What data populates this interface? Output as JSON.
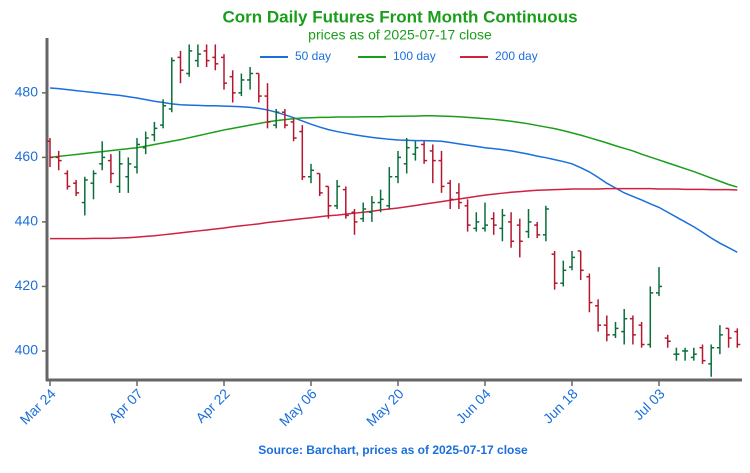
{
  "chart_data": {
    "type": "ohlc",
    "title": "Corn Daily Futures Front Month Continuous",
    "subtitle": "prices as of 2025-07-17 close",
    "source": "Source: Barchart, prices as of 2025-07-17 close",
    "title_color": "#1a9e1a",
    "text_color": "#1a6fdc",
    "up_color": "#0a6e3a",
    "down_color": "#b5172f",
    "grid": false,
    "legend_position": "top",
    "categories": [
      "Mar 24",
      null,
      null,
      null,
      null,
      null,
      null,
      null,
      null,
      null,
      "Apr 07",
      null,
      null,
      null,
      null,
      null,
      null,
      null,
      null,
      null,
      "Apr 22",
      null,
      null,
      null,
      null,
      null,
      null,
      null,
      null,
      null,
      "May 06",
      null,
      null,
      null,
      null,
      null,
      null,
      null,
      null,
      null,
      "May 20",
      null,
      null,
      null,
      null,
      null,
      null,
      null,
      null,
      null,
      "Jun 04",
      null,
      null,
      null,
      null,
      null,
      null,
      null,
      null,
      null,
      "Jun 18",
      null,
      null,
      null,
      null,
      null,
      null,
      null,
      null,
      null,
      "Jul 03",
      null,
      null,
      null,
      null,
      null,
      null,
      null,
      null,
      null
    ],
    "open": [
      465,
      460,
      455,
      452,
      446,
      452,
      458,
      459,
      451,
      454,
      457,
      463,
      467,
      470,
      475,
      491,
      486,
      490,
      493,
      491,
      491,
      485,
      480,
      484,
      486,
      479,
      470,
      474,
      471,
      468,
      454,
      455,
      451,
      445,
      450,
      443,
      441,
      443,
      446,
      445,
      454,
      458,
      461,
      464,
      462,
      459,
      452,
      449,
      445,
      438,
      438,
      441,
      438,
      440,
      439,
      437,
      439,
      436,
      430,
      421,
      426,
      431,
      423,
      414,
      408,
      405,
      406,
      410,
      408,
      402,
      418,
      404,
      399,
      400,
      398,
      401,
      396,
      401,
      407,
      406
    ],
    "high": [
      466,
      462,
      456,
      453,
      454,
      456,
      465,
      461,
      462,
      460,
      466,
      468,
      471,
      478,
      491,
      493,
      495,
      495,
      495,
      495,
      492,
      487,
      486,
      488,
      486,
      483,
      475,
      475,
      472,
      470,
      458,
      455,
      451,
      453,
      451,
      444,
      446,
      448,
      450,
      457,
      462,
      466,
      465,
      465,
      464,
      462,
      453,
      452,
      447,
      443,
      446,
      443,
      444,
      443,
      441,
      444,
      440,
      445,
      431,
      428,
      431,
      431,
      424,
      416,
      411,
      409,
      413,
      411,
      409,
      420,
      426,
      405,
      401,
      401,
      401,
      402,
      402,
      408,
      407,
      407
    ],
    "low": [
      457,
      456,
      450,
      448,
      442,
      447,
      456,
      452,
      449,
      449,
      455,
      461,
      465,
      469,
      474,
      483,
      485,
      488,
      488,
      487,
      481,
      477,
      479,
      481,
      477,
      469,
      469,
      469,
      465,
      453,
      452,
      448,
      441,
      444,
      441,
      436,
      440,
      440,
      443,
      444,
      452,
      455,
      459,
      458,
      452,
      449,
      444,
      444,
      437,
      437,
      437,
      436,
      434,
      432,
      429,
      435,
      435,
      434,
      419,
      420,
      425,
      422,
      412,
      406,
      403,
      404,
      402,
      402,
      401,
      401,
      417,
      401,
      397,
      397,
      397,
      396,
      392,
      399,
      401,
      401
    ],
    "close": [
      460,
      459,
      451,
      449,
      453,
      455,
      460,
      455,
      458,
      458,
      464,
      466,
      469,
      476,
      490,
      487,
      493,
      492,
      490,
      489,
      483,
      480,
      484,
      486,
      479,
      471,
      474,
      470,
      466,
      454,
      456,
      449,
      445,
      451,
      442,
      440,
      444,
      446,
      447,
      454,
      460,
      463,
      463,
      459,
      459,
      451,
      447,
      446,
      439,
      440,
      439,
      439,
      442,
      434,
      434,
      440,
      436,
      444,
      421,
      425,
      429,
      425,
      415,
      408,
      405,
      407,
      410,
      405,
      402,
      418,
      420,
      403,
      399,
      400,
      399,
      397,
      401,
      405,
      404,
      402
    ],
    "series": [
      {
        "name": "50 day",
        "color": "#1a6fdc",
        "values": [
          481.5,
          481.3,
          481,
          480.7,
          480.4,
          480.1,
          479.8,
          479.5,
          479.2,
          478.8,
          478.4,
          477.9,
          477.4,
          477,
          476.6,
          476.3,
          476.2,
          476.1,
          476,
          476,
          475.9,
          475.8,
          475.7,
          475.5,
          475.2,
          474.7,
          474,
          473.2,
          472.3,
          471.3,
          470.3,
          469.4,
          468.6,
          468,
          467.5,
          467,
          466.6,
          466.2,
          465.9,
          465.6,
          465.4,
          465.3,
          465.2,
          465.2,
          465.1,
          465,
          464.6,
          464.2,
          463.8,
          463.4,
          463,
          462.7,
          462.4,
          462,
          461.5,
          461,
          460.4,
          459.9,
          459.3,
          458.7,
          458,
          456.8,
          455.5,
          453.8,
          452,
          450.5,
          449,
          447.9,
          446.8,
          445.6,
          444.5,
          443,
          441.5,
          440,
          438.5,
          436.8,
          435,
          433.4,
          432,
          430.6
        ]
      },
      {
        "name": "100 day",
        "color": "#1a9e1a",
        "values": [
          460,
          460.3,
          460.6,
          460.9,
          461.2,
          461.5,
          461.8,
          462.1,
          462.4,
          462.7,
          463,
          463.5,
          464,
          464.5,
          465,
          465.5,
          466.1,
          466.7,
          467.3,
          467.9,
          468.5,
          469,
          469.5,
          470,
          470.5,
          471,
          471.4,
          471.7,
          472,
          472.2,
          472.3,
          472.4,
          472.4,
          472.5,
          472.5,
          472.5,
          472.6,
          472.6,
          472.6,
          472.7,
          472.7,
          472.8,
          472.8,
          472.9,
          472.9,
          472.8,
          472.7,
          472.6,
          472.4,
          472.2,
          472,
          471.8,
          471.5,
          471.2,
          470.8,
          470.4,
          469.9,
          469.4,
          468.9,
          468.3,
          467.6,
          466.9,
          466.1,
          465.3,
          464.5,
          463.6,
          462.8,
          462,
          461,
          460.1,
          459.2,
          458.3,
          457.4,
          456.5,
          455.6,
          454.6,
          453.6,
          452.6,
          451.6,
          450.8
        ]
      },
      {
        "name": "200 day",
        "color": "#d0213f",
        "values": [
          434.8,
          434.8,
          434.8,
          434.8,
          434.8,
          434.9,
          434.9,
          434.9,
          435,
          435.1,
          435.3,
          435.5,
          435.7,
          436,
          436.3,
          436.6,
          436.9,
          437.2,
          437.5,
          437.8,
          438.1,
          438.5,
          438.8,
          439.1,
          439.4,
          439.8,
          440.1,
          440.4,
          440.7,
          441,
          441.3,
          441.6,
          441.9,
          442.1,
          442.4,
          442.7,
          443,
          443.3,
          443.7,
          444,
          444.3,
          444.7,
          445.1,
          445.5,
          445.9,
          446.3,
          446.7,
          447.1,
          447.5,
          447.9,
          448.3,
          448.6,
          448.9,
          449.2,
          449.4,
          449.6,
          449.8,
          449.9,
          450,
          450.1,
          450.2,
          450.2,
          450.2,
          450.2,
          450.3,
          450.3,
          450.3,
          450.3,
          450.3,
          450.3,
          450.2,
          450.2,
          450.2,
          450.1,
          450.1,
          450.1,
          450,
          450,
          450,
          449.9
        ]
      }
    ],
    "ylim": [
      391,
      497
    ],
    "yticks": [
      400,
      420,
      440,
      460,
      480
    ]
  }
}
